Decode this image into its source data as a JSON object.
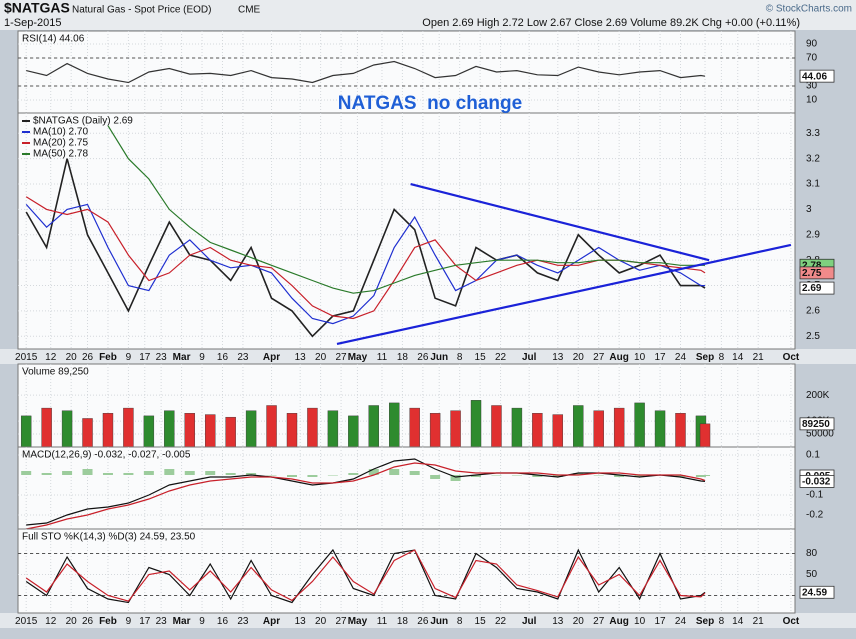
{
  "chart_data": {
    "type": "financial",
    "title": "$NATGAS",
    "subtitle": "Natural Gas - Spot Price (EOD)",
    "exchange": "CME",
    "date": "1-Sep-2015",
    "quote": "Open 2.69 High 2.72 Low 2.67 Close 2.69 Volume 89.2K Chg +0.00 (+0.11%)",
    "credit": "© StockCharts.com",
    "annotation": "NATGAS  no change",
    "x": [
      0,
      5,
      10,
      15,
      20,
      25,
      30,
      35,
      40,
      45,
      50,
      55,
      60,
      65,
      70,
      75,
      80,
      85,
      90,
      95,
      100,
      105,
      110,
      115,
      120,
      125,
      130,
      135,
      140,
      145,
      150,
      155,
      160,
      165,
      166
    ],
    "xlim": [
      -2,
      188
    ],
    "xticks": [
      {
        "value": 0,
        "label": "2015"
      },
      {
        "value": 6,
        "label": "12"
      },
      {
        "value": 11,
        "label": "20"
      },
      {
        "value": 15,
        "label": "26"
      },
      {
        "value": 20,
        "label": "Feb"
      },
      {
        "value": 25,
        "label": "9"
      },
      {
        "value": 29,
        "label": "17"
      },
      {
        "value": 33,
        "label": "23"
      },
      {
        "value": 38,
        "label": "Mar"
      },
      {
        "value": 43,
        "label": "9"
      },
      {
        "value": 48,
        "label": "16"
      },
      {
        "value": 53,
        "label": "23"
      },
      {
        "value": 60,
        "label": "Apr"
      },
      {
        "value": 67,
        "label": "13"
      },
      {
        "value": 72,
        "label": "20"
      },
      {
        "value": 77,
        "label": "27"
      },
      {
        "value": 81,
        "label": "May"
      },
      {
        "value": 87,
        "label": "11"
      },
      {
        "value": 92,
        "label": "18"
      },
      {
        "value": 97,
        "label": "26"
      },
      {
        "value": 101,
        "label": "Jun"
      },
      {
        "value": 106,
        "label": "8"
      },
      {
        "value": 111,
        "label": "15"
      },
      {
        "value": 116,
        "label": "22"
      },
      {
        "value": 123,
        "label": "Jul"
      },
      {
        "value": 130,
        "label": "13"
      },
      {
        "value": 135,
        "label": "20"
      },
      {
        "value": 140,
        "label": "27"
      },
      {
        "value": 145,
        "label": "Aug"
      },
      {
        "value": 150,
        "label": "10"
      },
      {
        "value": 155,
        "label": "17"
      },
      {
        "value": 160,
        "label": "24"
      },
      {
        "value": 166,
        "label": "Sep"
      },
      {
        "value": 170,
        "label": "8"
      },
      {
        "value": 174,
        "label": "14"
      },
      {
        "value": 179,
        "label": "21"
      },
      {
        "value": 187,
        "label": "Oct"
      }
    ],
    "grid": true,
    "panels": [
      {
        "type": "line",
        "label": "RSI(14) 44.06",
        "ylim": [
          -8.6,
          108.6
        ],
        "yticks": [
          10,
          30,
          70,
          90
        ],
        "reference": [
          30,
          70
        ],
        "series": [
          {
            "color": "#333333",
            "values": [
              52,
              45,
              62,
              48,
              40,
              35,
              50,
              55,
              47,
              48,
              45,
              52,
              42,
              40,
              35,
              45,
              48,
              60,
              65,
              55,
              42,
              45,
              58,
              50,
              52,
              46,
              45,
              57,
              50,
              46,
              50,
              52,
              42,
              45,
              44.06
            ]
          }
        ],
        "markers": [
          {
            "value": 44.06,
            "color": "#ffffff"
          }
        ]
      },
      {
        "type": "line",
        "ylim": [
          2.45,
          3.38
        ],
        "yticks": [
          2.5,
          2.6,
          2.7,
          2.8,
          2.9,
          3.0,
          3.1,
          3.2,
          3.3
        ],
        "legend": "upper left",
        "series": [
          {
            "name": "$NATGAS (Daily) 2.69",
            "color": "#222222",
            "values": [
              2.99,
              2.85,
              3.2,
              2.9,
              2.75,
              2.6,
              2.78,
              2.95,
              2.82,
              2.8,
              2.72,
              2.85,
              2.65,
              2.6,
              2.5,
              2.58,
              2.6,
              2.8,
              3.0,
              2.92,
              2.65,
              2.62,
              2.85,
              2.8,
              2.82,
              2.75,
              2.72,
              2.9,
              2.82,
              2.75,
              2.78,
              2.82,
              2.7,
              2.7,
              2.69
            ]
          },
          {
            "name": "MA(10) 2.70",
            "color": "#1f2fd0",
            "values": [
              3.02,
              2.93,
              3.0,
              3.02,
              2.85,
              2.7,
              2.68,
              2.82,
              2.88,
              2.8,
              2.77,
              2.78,
              2.75,
              2.65,
              2.57,
              2.55,
              2.58,
              2.66,
              2.85,
              2.97,
              2.82,
              2.68,
              2.72,
              2.8,
              2.82,
              2.78,
              2.75,
              2.8,
              2.85,
              2.8,
              2.76,
              2.78,
              2.75,
              2.7,
              2.7
            ]
          },
          {
            "name": "MA(20) 2.75",
            "color": "#c8202a",
            "values": [
              3.05,
              3.0,
              2.98,
              3.0,
              2.95,
              2.82,
              2.72,
              2.75,
              2.82,
              2.85,
              2.8,
              2.78,
              2.77,
              2.7,
              2.62,
              2.58,
              2.57,
              2.6,
              2.72,
              2.85,
              2.88,
              2.78,
              2.72,
              2.75,
              2.78,
              2.8,
              2.78,
              2.78,
              2.8,
              2.8,
              2.79,
              2.78,
              2.77,
              2.76,
              2.75
            ]
          },
          {
            "name": "MA(50) 2.78",
            "color": "#2a7a2a",
            "values": [
              null,
              null,
              null,
              null,
              3.33,
              3.2,
              3.12,
              3.0,
              2.93,
              2.87,
              2.84,
              2.81,
              2.78,
              2.75,
              2.72,
              2.69,
              2.67,
              2.68,
              2.71,
              2.74,
              2.76,
              2.78,
              2.79,
              2.8,
              2.8,
              2.8,
              2.79,
              2.79,
              2.8,
              2.8,
              2.79,
              2.79,
              2.78,
              2.78,
              2.78
            ]
          }
        ],
        "trendlines": [
          {
            "color": "#1a22d8",
            "x": [
              94,
              167
            ],
            "values": [
              3.1,
              2.8
            ]
          },
          {
            "color": "#1a22d8",
            "x": [
              76,
              187
            ],
            "values": [
              2.47,
              2.86
            ]
          }
        ],
        "markers": [
          {
            "value": 2.78,
            "color": "#7fd07f"
          },
          {
            "value": 2.75,
            "color": "#f08a8a"
          },
          {
            "value": 2.69,
            "color": "#ffffff"
          }
        ]
      },
      {
        "type": "bar",
        "label": "Volume 89,250",
        "ylim": [
          0,
          320000
        ],
        "yticks": [
          {
            "value": 200000,
            "label": "200K"
          },
          {
            "value": 100000,
            "label": "100K"
          },
          50000
        ],
        "up_color": "#2e8b2e",
        "down_color": "#e03030",
        "values": [
          120000,
          150000,
          140000,
          110000,
          130000,
          150000,
          120000,
          140000,
          130000,
          125000,
          115000,
          140000,
          160000,
          130000,
          150000,
          140000,
          120000,
          160000,
          170000,
          150000,
          130000,
          140000,
          180000,
          160000,
          150000,
          130000,
          125000,
          160000,
          140000,
          150000,
          170000,
          140000,
          130000,
          120000,
          89250
        ],
        "markers": [
          {
            "value": 89250,
            "color": "#ffffff"
          }
        ]
      },
      {
        "type": "line",
        "label": "MACD(12,26,9) -0.032, -0.027, -0.005",
        "ylim": [
          -0.27,
          0.14
        ],
        "yticks": [
          -0.2,
          -0.1,
          0.1
        ],
        "series": [
          {
            "color": "#9ccc9c",
            "style": "histogram",
            "values": [
              0.02,
              0.01,
              0.02,
              0.03,
              0.01,
              0.01,
              0.02,
              0.03,
              0.02,
              0.02,
              0.01,
              0.01,
              0,
              -0.01,
              -0.01,
              0,
              0.01,
              0.03,
              0.03,
              0.02,
              -0.02,
              -0.03,
              -0.01,
              0,
              0,
              -0.01,
              -0.01,
              0.01,
              0,
              -0.01,
              -0.01,
              0,
              -0.01,
              -0.01,
              -0.005
            ]
          },
          {
            "color": "#111111",
            "values": [
              -0.25,
              -0.24,
              -0.2,
              -0.17,
              -0.16,
              -0.14,
              -0.1,
              -0.05,
              -0.03,
              -0.01,
              -0.01,
              0,
              -0.01,
              -0.03,
              -0.05,
              -0.04,
              -0.02,
              0.03,
              0.07,
              0.08,
              0.03,
              -0.01,
              0,
              0.01,
              0.01,
              0,
              -0.01,
              0.01,
              0.01,
              0,
              -0.01,
              0,
              -0.01,
              -0.03,
              -0.032
            ]
          },
          {
            "color": "#c8202a",
            "values": [
              -0.27,
              -0.25,
              -0.22,
              -0.2,
              -0.17,
              -0.15,
              -0.12,
              -0.08,
              -0.05,
              -0.03,
              -0.02,
              -0.01,
              -0.01,
              -0.02,
              -0.04,
              -0.04,
              -0.03,
              0,
              0.04,
              0.06,
              0.05,
              0.02,
              0.01,
              0.01,
              0.01,
              0.01,
              0,
              0,
              0.01,
              0.01,
              0,
              0,
              0,
              -0.02,
              -0.027
            ]
          }
        ],
        "markers": [
          {
            "value": -0.005,
            "color": "#ffffff"
          },
          {
            "value": -0.032,
            "color": "#ffffff"
          }
        ]
      },
      {
        "type": "line",
        "label": "Full STO %K(14,3) %D(3) 24.59, 23.50",
        "ylim": [
          -5,
          115
        ],
        "yticks": [
          20,
          50,
          80
        ],
        "reference": [
          20,
          80
        ],
        "series": [
          {
            "color": "#111111",
            "values": [
              40,
              20,
              75,
              30,
              15,
              10,
              60,
              50,
              20,
              65,
              15,
              70,
              20,
              10,
              50,
              85,
              30,
              20,
              80,
              85,
              20,
              15,
              80,
              60,
              30,
              25,
              15,
              85,
              25,
              60,
              15,
              80,
              15,
              20,
              24.59
            ]
          },
          {
            "color": "#c8202a",
            "values": [
              45,
              25,
              65,
              40,
              20,
              12,
              50,
              55,
              28,
              55,
              25,
              60,
              28,
              13,
              40,
              75,
              40,
              22,
              70,
              85,
              30,
              17,
              70,
              65,
              35,
              27,
              18,
              75,
              35,
              50,
              20,
              70,
              20,
              18,
              23.5
            ]
          }
        ],
        "markers": [
          {
            "value": 24.59,
            "color": "#ffffff"
          }
        ]
      }
    ]
  }
}
